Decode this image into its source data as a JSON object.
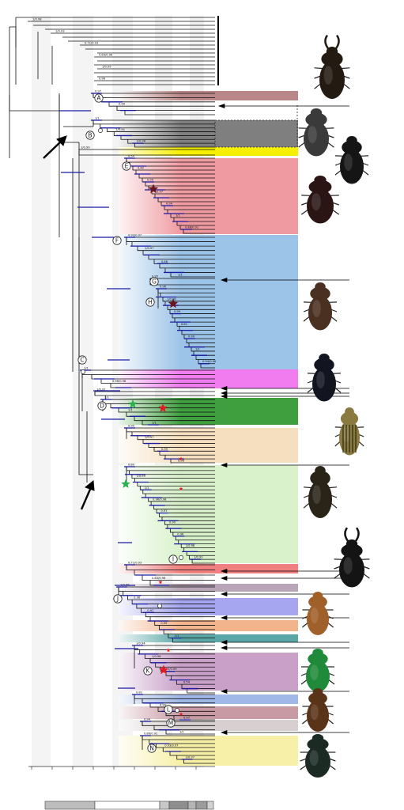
{
  "clade_labels": [
    "A",
    "B",
    "C",
    "D",
    "E",
    "F",
    "G",
    "H",
    "I",
    "J",
    "K",
    "L",
    "M",
    "N"
  ],
  "support_labels": [
    "1/0.98",
    "1/0.93",
    "0.71/0.93",
    "0.83/0.96",
    "1/0.99",
    "0.96",
    "0.97",
    "0.99",
    "1/1",
    "1/0.94",
    "1/0.96",
    "1/0.99",
    "0.54",
    "0.82",
    "0.99",
    "0.97",
    "0.94",
    "1/1",
    "0.86/0.91",
    "0.93/0.97",
    "1/0.97",
    "0.86",
    "1/1",
    "0.95",
    "0.96",
    "1/0.98",
    "0.99",
    "0.81",
    "0.99",
    "1/1",
    "0.94/0.98",
    "1/1",
    "0.96/0.98",
    "1/0.97",
    "1/1",
    "1/1",
    "1/1",
    "0.95",
    "1/0.97",
    "0.99",
    "0.96",
    "0.89",
    "1/0.99",
    "1/1",
    "0.96/0.98",
    "0.97",
    "0.99",
    "0.96"
  ],
  "colors": {
    "branch": "#111111",
    "node_bar": "#1a1aa0",
    "arrow": "#000000",
    "star_red": "#e01b24",
    "star_green": "#2bb24c",
    "star_dark": "#6b1520"
  },
  "band_colors": [
    "#b98787",
    "#7f7f7f",
    "#f7ef00",
    "#ef9aa0",
    "#9cc3e8",
    "#f07cf0",
    "#3f9f3f",
    "#f5dfbf",
    "#d9f2cc",
    "#f08080",
    "#b8a6b8",
    "#a6a6f0",
    "#f2b48c",
    "#5aa6a6",
    "#c8a0c8",
    "#9fb8e8",
    "#c89aa4",
    "#d8d0d0",
    "#f7f0a8"
  ],
  "beetle_icons": [
    "stag-beetle-icon",
    "scarab-beetle-icon",
    "dung-beetle-icon",
    "dung-beetle-icon",
    "scarab-beetle-icon",
    "dung-beetle-icon",
    "striped-chafer-icon",
    "chafer-icon",
    "stag-beetle-icon",
    "chafer-icon",
    "green-chafer-icon",
    "chafer-icon",
    "dung-beetle-icon"
  ]
}
